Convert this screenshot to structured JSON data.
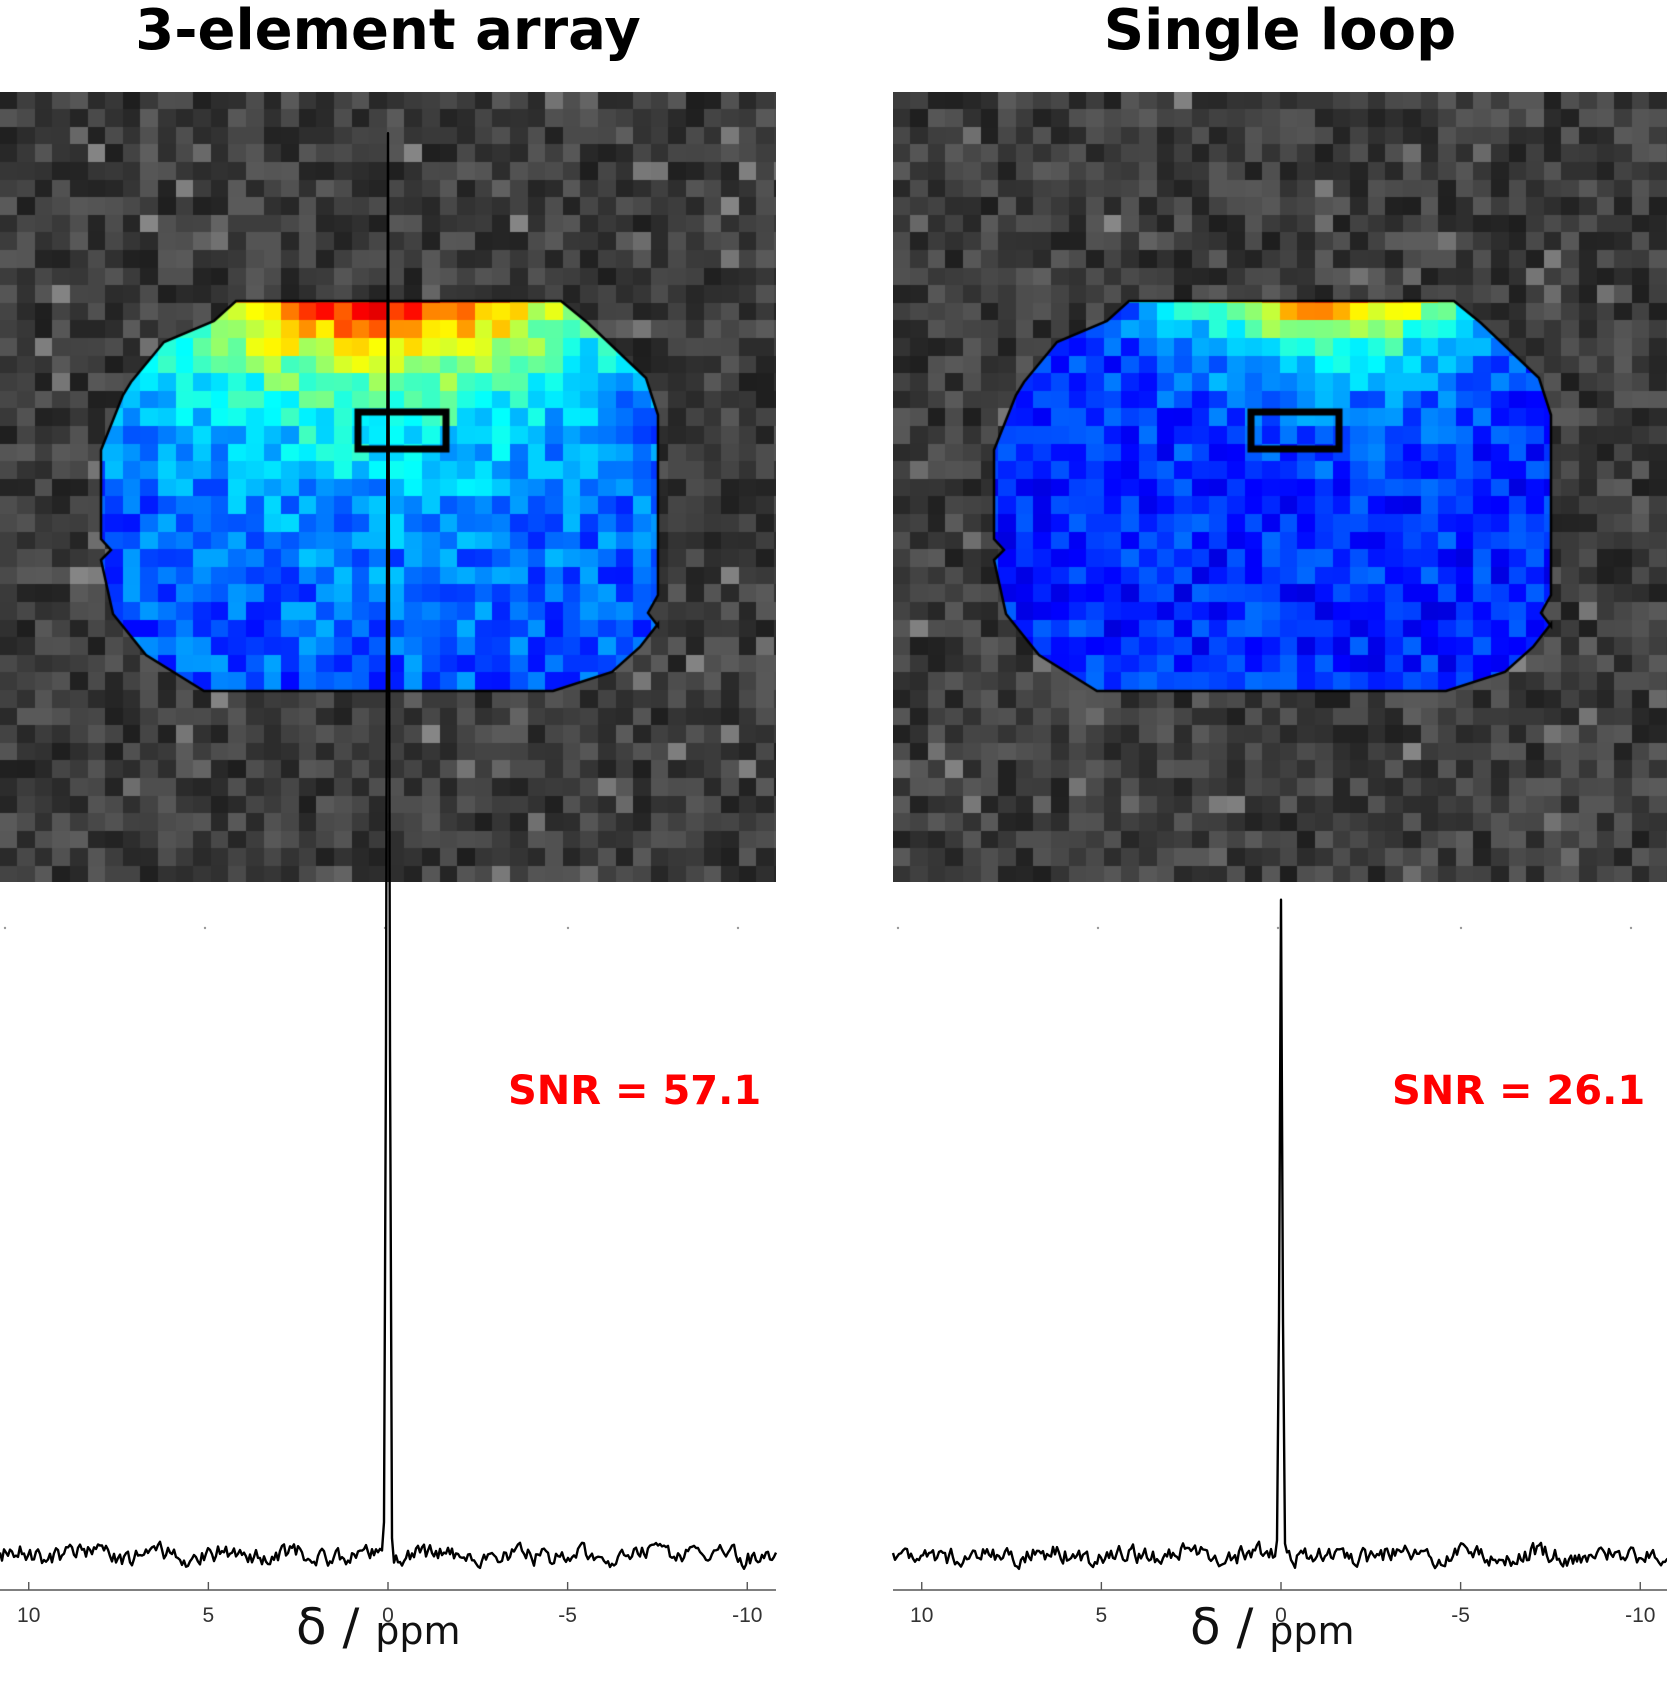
{
  "chart_data": [
    {
      "type": "heatmap",
      "title": "3-element array",
      "colormap": "jet",
      "roi": "rectangle",
      "background": "noise-grayscale"
    },
    {
      "type": "heatmap",
      "title": "Single loop",
      "colormap": "jet",
      "roi": "rectangle",
      "background": "noise-grayscale"
    },
    {
      "type": "line",
      "xlabel": "δ / ppm",
      "xlim": [
        10.8,
        -10.8
      ],
      "xticks": [
        10,
        5,
        0,
        -5,
        -10
      ],
      "peak_ppm": 0,
      "peak_height": 57.1,
      "annotation": "SNR = 57.1",
      "annotation_color": "#ff0000",
      "grid": false
    },
    {
      "type": "line",
      "xlabel": "δ / ppm",
      "xlim": [
        10.8,
        -10.8
      ],
      "xticks": [
        10,
        5,
        0,
        -5,
        -10
      ],
      "peak_ppm": 0,
      "peak_height": 26.1,
      "annotation": "SNR = 26.1",
      "annotation_color": "#ff0000",
      "grid": false
    }
  ],
  "labels": {
    "left_title": "3-element array",
    "right_title": "Single loop",
    "snr_left": "SNR = 57.1",
    "snr_right": "SNR = 26.1",
    "xlabel_symbol": "δ",
    "xlabel_sep": " / ",
    "xlabel_unit": "ppm"
  }
}
